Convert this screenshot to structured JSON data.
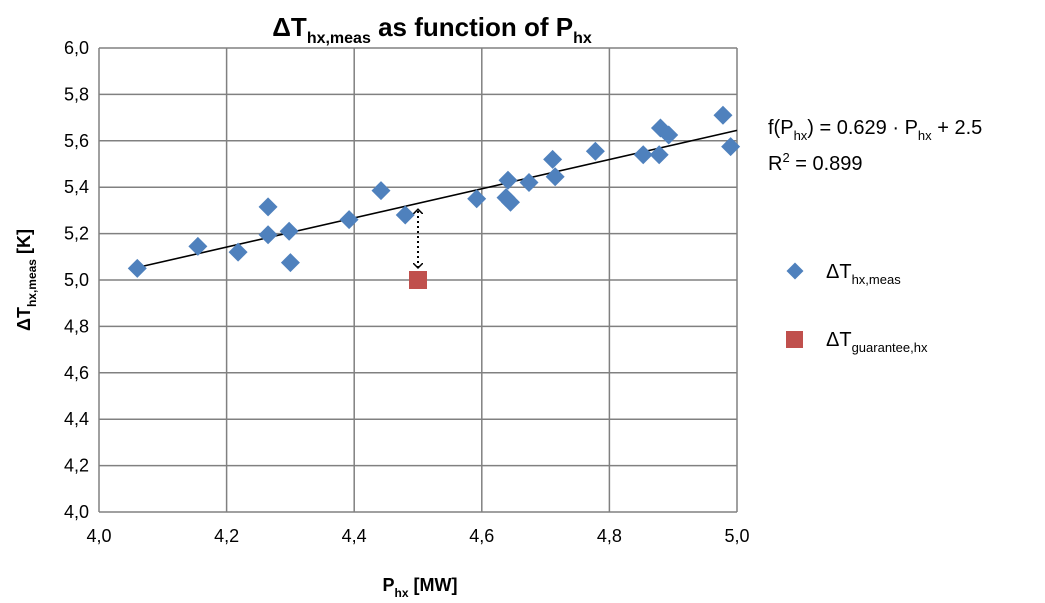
{
  "chart_data": {
    "type": "scatter",
    "title": {
      "main": "ΔT",
      "sub": "hx,meas",
      "mid": " as function of P",
      "sub2": "hx"
    },
    "xlabel": {
      "main": "P",
      "sub": "hx",
      "rest": " [MW]"
    },
    "ylabel": {
      "main": "ΔT",
      "sub": "hx,meas",
      "rest": " [K]"
    },
    "xlim": [
      4.0,
      5.0
    ],
    "ylim": [
      4.0,
      6.0
    ],
    "xticks": [
      "4,0",
      "4,2",
      "4,4",
      "4,6",
      "4,8",
      "5,0"
    ],
    "yticks": [
      "4,0",
      "4,2",
      "4,4",
      "4,6",
      "4,8",
      "5,0",
      "5,2",
      "5,4",
      "5,6",
      "5,8",
      "6,0"
    ],
    "grid": true,
    "legend_placement": "right",
    "series": [
      {
        "name": {
          "main": "ΔT",
          "sub": "hx,meas"
        },
        "marker": "diamond",
        "color": "#4F81BD",
        "points": [
          [
            4.06,
            5.05
          ],
          [
            4.155,
            5.145
          ],
          [
            4.218,
            5.12
          ],
          [
            4.265,
            5.315
          ],
          [
            4.265,
            5.195
          ],
          [
            4.298,
            5.21
          ],
          [
            4.3,
            5.075
          ],
          [
            4.392,
            5.26
          ],
          [
            4.442,
            5.385
          ],
          [
            4.48,
            5.28
          ],
          [
            4.592,
            5.35
          ],
          [
            4.638,
            5.355
          ],
          [
            4.641,
            5.43
          ],
          [
            4.645,
            5.335
          ],
          [
            4.674,
            5.42
          ],
          [
            4.711,
            5.52
          ],
          [
            4.715,
            5.445
          ],
          [
            4.778,
            5.555
          ],
          [
            4.853,
            5.54
          ],
          [
            4.878,
            5.54
          ],
          [
            4.88,
            5.655
          ],
          [
            4.893,
            5.625
          ],
          [
            4.978,
            5.71
          ],
          [
            4.99,
            5.575
          ]
        ]
      },
      {
        "name": {
          "main": "ΔT",
          "sub": "guarantee,hx"
        },
        "marker": "square",
        "color": "#C0504D",
        "points": [
          [
            4.5,
            5.0
          ]
        ]
      }
    ],
    "trendline": {
      "slope": 0.629,
      "intercept": 2.5,
      "x_range": [
        4.06,
        5.0
      ],
      "color": "#000000",
      "equation": {
        "f": "f(P",
        "fsub": "hx",
        "mid": ") = 0.629 · P",
        "psub": "hx",
        "end": " + 2.5"
      },
      "r2": {
        "r": "R",
        "sup": "2",
        "rest": " = 0.899"
      }
    },
    "annotation": {
      "type": "double-arrow",
      "x": 4.5,
      "y_from": 5.0,
      "y_to": 5.305,
      "style": "dotted"
    }
  }
}
